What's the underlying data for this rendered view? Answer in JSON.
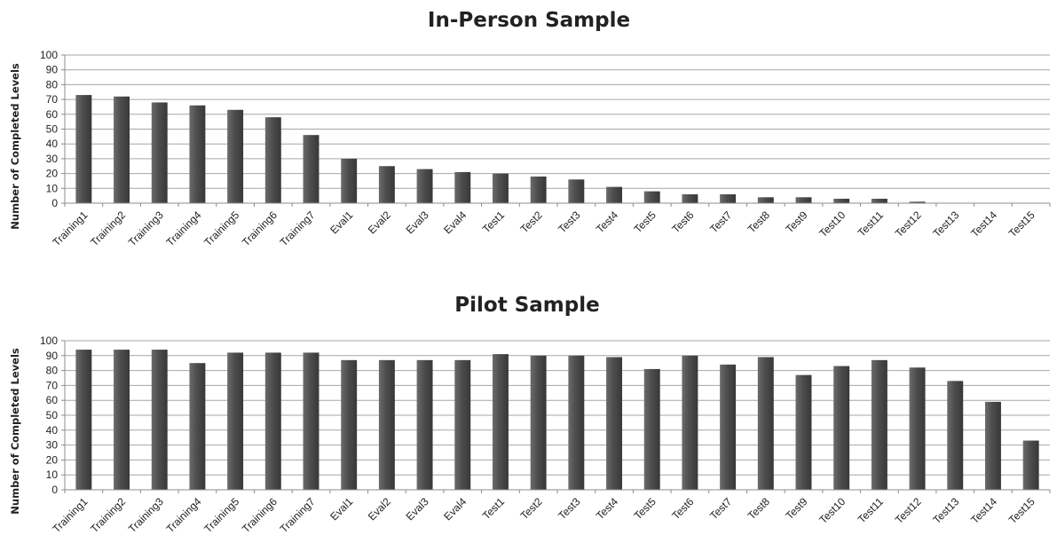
{
  "chart_data": [
    {
      "type": "bar",
      "title": "In-Person Sample",
      "ylabel": "Number of Completed Levels",
      "xlabel": "",
      "ylim": [
        0,
        100
      ],
      "yticks": [
        0,
        10,
        20,
        30,
        40,
        50,
        60,
        70,
        80,
        90,
        100
      ],
      "grid": true,
      "bar_color": "#4d4d4d",
      "categories": [
        "Training1",
        "Training2",
        "Training3",
        "Training4",
        "Training5",
        "Training6",
        "Training7",
        "Eval1",
        "Eval2",
        "Eval3",
        "Eval4",
        "Test1",
        "Test2",
        "Test3",
        "Test4",
        "Test5",
        "Test6",
        "Test7",
        "Test8",
        "Test9",
        "Test10",
        "Test11",
        "Test12",
        "Test13",
        "Test14",
        "Test15"
      ],
      "values": [
        73,
        72,
        68,
        66,
        63,
        58,
        46,
        30,
        25,
        23,
        21,
        20,
        18,
        16,
        11,
        8,
        6,
        6,
        4,
        4,
        3,
        3,
        1,
        0,
        0,
        0
      ]
    },
    {
      "type": "bar",
      "title": "Pilot Sample",
      "ylabel": "Number of Completed Levels",
      "xlabel": "",
      "ylim": [
        0,
        100
      ],
      "yticks": [
        0,
        10,
        20,
        30,
        40,
        50,
        60,
        70,
        80,
        90,
        100
      ],
      "grid": true,
      "bar_color": "#4d4d4d",
      "categories": [
        "Training1",
        "Training2",
        "Training3",
        "Training4",
        "Training5",
        "Training6",
        "Training7",
        "Eval1",
        "Eval2",
        "Eval3",
        "Eval4",
        "Test1",
        "Test2",
        "Test3",
        "Test4",
        "Test5",
        "Test6",
        "Test7",
        "Test8",
        "Test9",
        "Test10",
        "Test11",
        "Test12",
        "Test13",
        "Test14",
        "Test15"
      ],
      "values": [
        94,
        94,
        94,
        85,
        92,
        92,
        92,
        87,
        87,
        87,
        87,
        91,
        90,
        90,
        89,
        81,
        90,
        84,
        89,
        77,
        83,
        87,
        82,
        73,
        59,
        33
      ]
    }
  ]
}
